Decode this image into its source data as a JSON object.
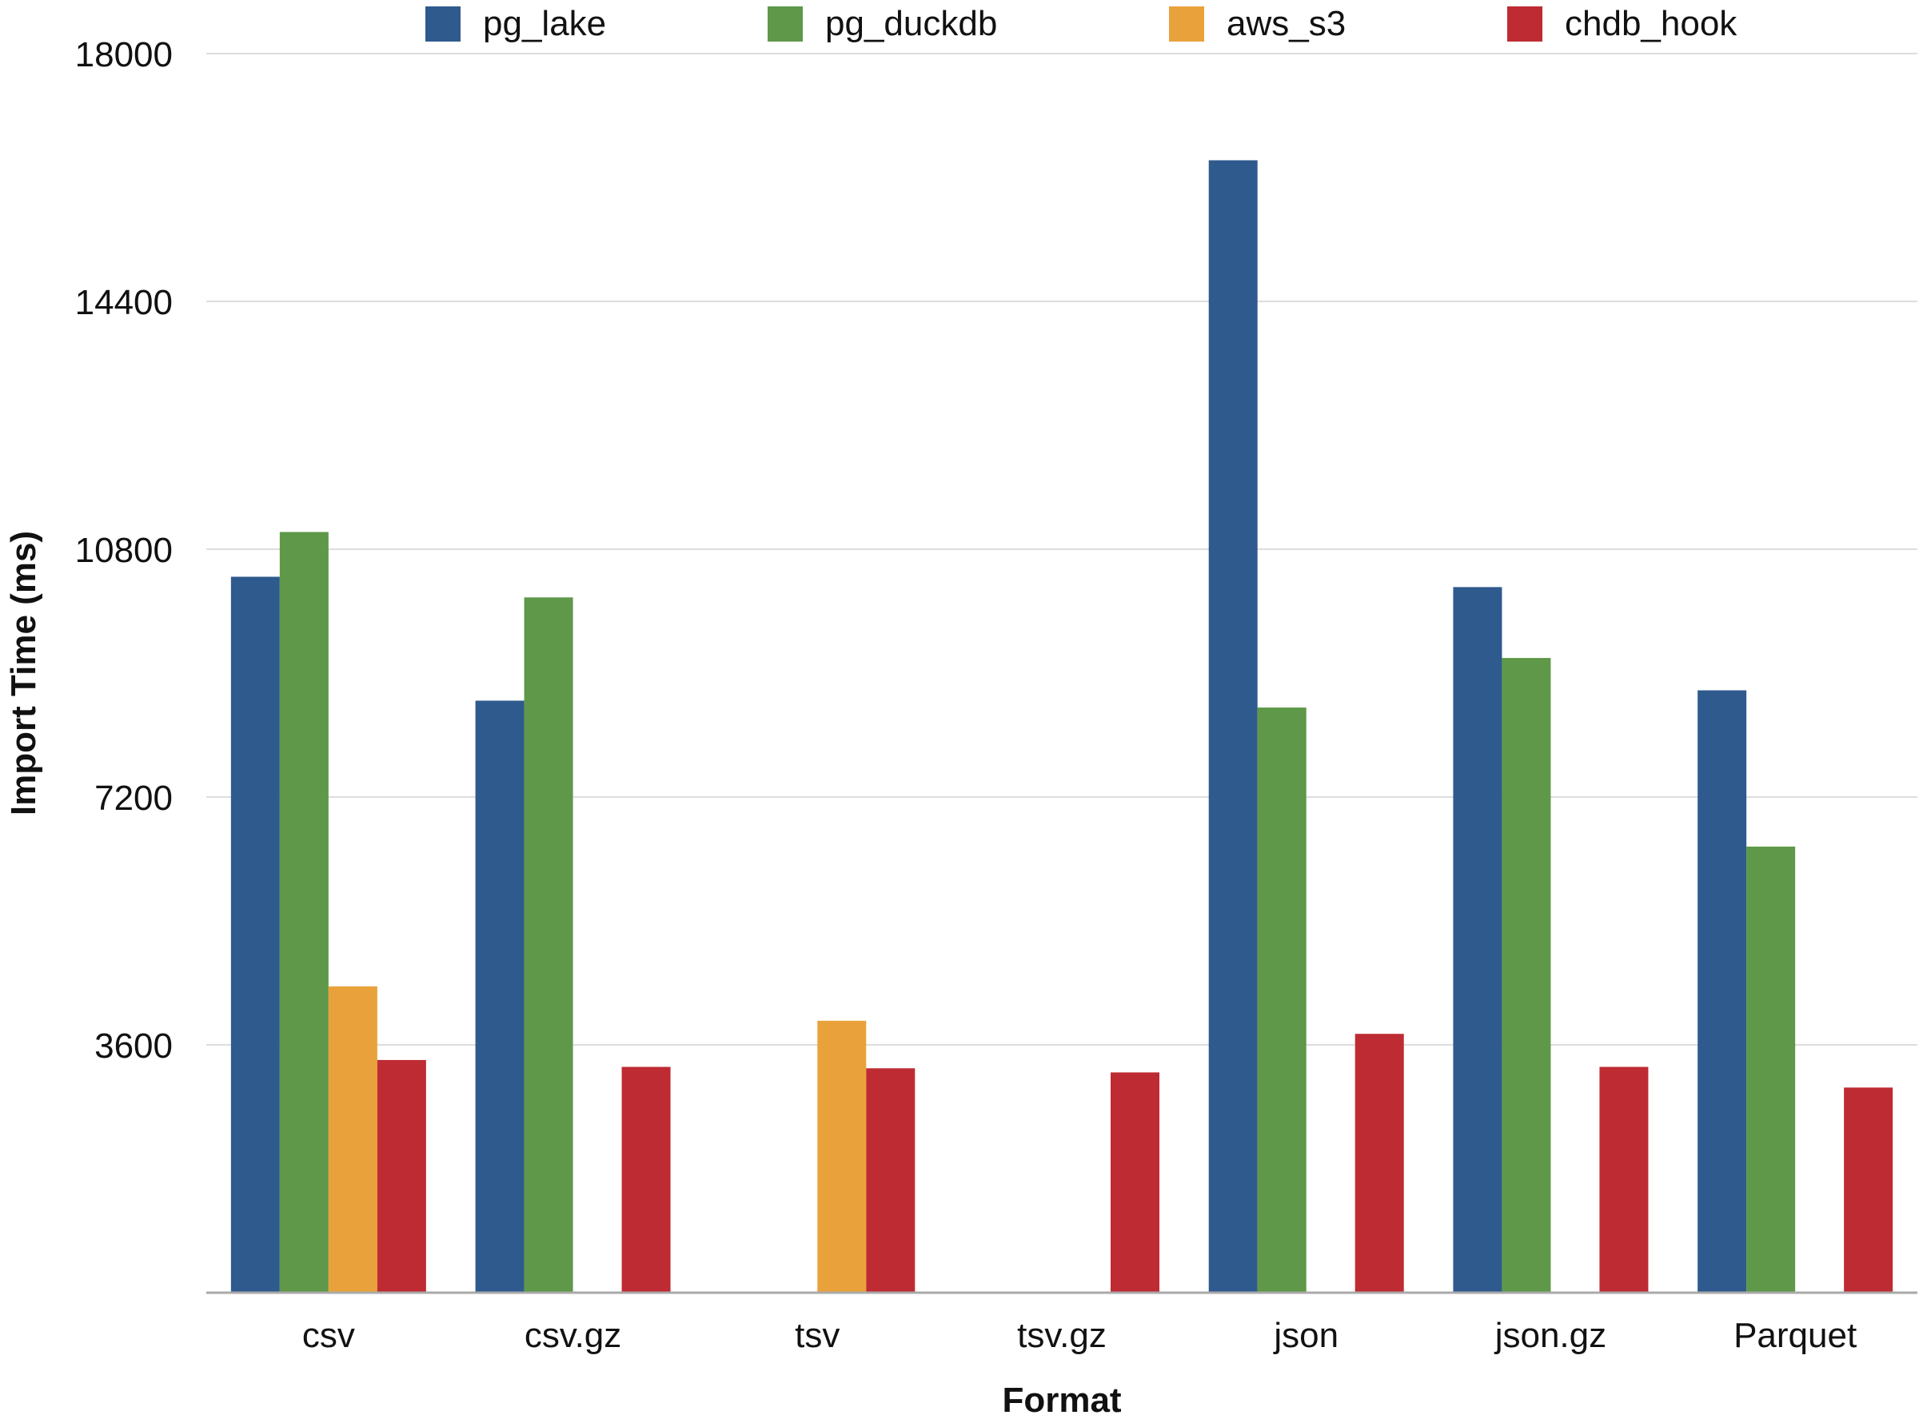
{
  "chart_data": {
    "type": "bar",
    "title": "",
    "xlabel": "Format",
    "ylabel": "Import Time (ms)",
    "ylim": [
      0,
      18000
    ],
    "yticks": [
      3600,
      7200,
      10800,
      14400,
      18000
    ],
    "grid": true,
    "legend_position": "top",
    "categories": [
      "csv",
      "csv.gz",
      "tsv",
      "tsv.gz",
      "json",
      "json.gz",
      "Parquet"
    ],
    "series": [
      {
        "name": "pg_lake",
        "color": "#2f5a8e",
        "values": [
          10400,
          8600,
          null,
          null,
          16450,
          10250,
          8750
        ]
      },
      {
        "name": "pg_duckdb",
        "color": "#5e9848",
        "values": [
          11050,
          10100,
          null,
          null,
          8500,
          9220,
          6480
        ]
      },
      {
        "name": "aws_s3",
        "color": "#e9a23b",
        "values": [
          4450,
          null,
          3950,
          null,
          null,
          null,
          null
        ]
      },
      {
        "name": "chdb_hook",
        "color": "#bf2b32",
        "values": [
          3380,
          3280,
          3260,
          3200,
          3760,
          3280,
          2980
        ]
      }
    ]
  }
}
